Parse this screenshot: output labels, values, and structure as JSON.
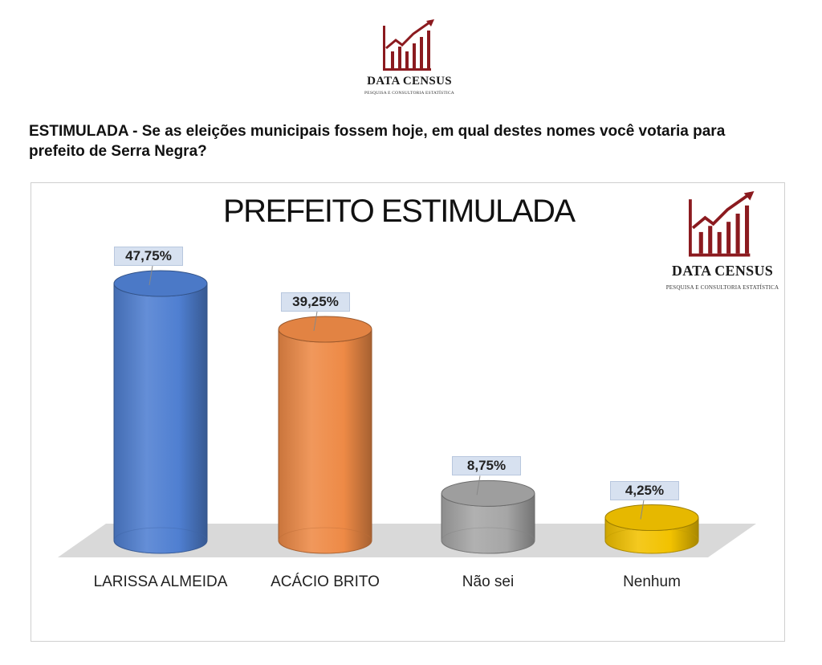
{
  "header": {
    "brand_name": "DATA CENSUS",
    "brand_tagline": "PESQUISA E CONSULTORIA ESTATÍSTICA",
    "question": "ESTIMULADA - Se as eleições municipais fossem hoje, em qual destes nomes você votaria para prefeito de Serra Negra?"
  },
  "logo_icon": "rising-bar-chart-arrow-icon",
  "colors": {
    "brand": "#8b1a1f",
    "floor": "#d9d9d9"
  },
  "chart_data": {
    "type": "bar",
    "title": "PREFEITO ESTIMULADA",
    "xlabel": "",
    "ylabel": "",
    "ylim": [
      0,
      50
    ],
    "grid": false,
    "style": "3d-cylinder",
    "categories": [
      "LARISSA ALMEIDA",
      "ACÁCIO BRITO",
      "Não sei",
      "Nenhum"
    ],
    "values": [
      47.75,
      39.25,
      8.75,
      4.25
    ],
    "data_labels": [
      "47,75%",
      "39,25%",
      "8,75%",
      "4,25%"
    ],
    "colors": [
      "#4f7fd1",
      "#ee8a46",
      "#a6a6a6",
      "#f2c200"
    ]
  }
}
